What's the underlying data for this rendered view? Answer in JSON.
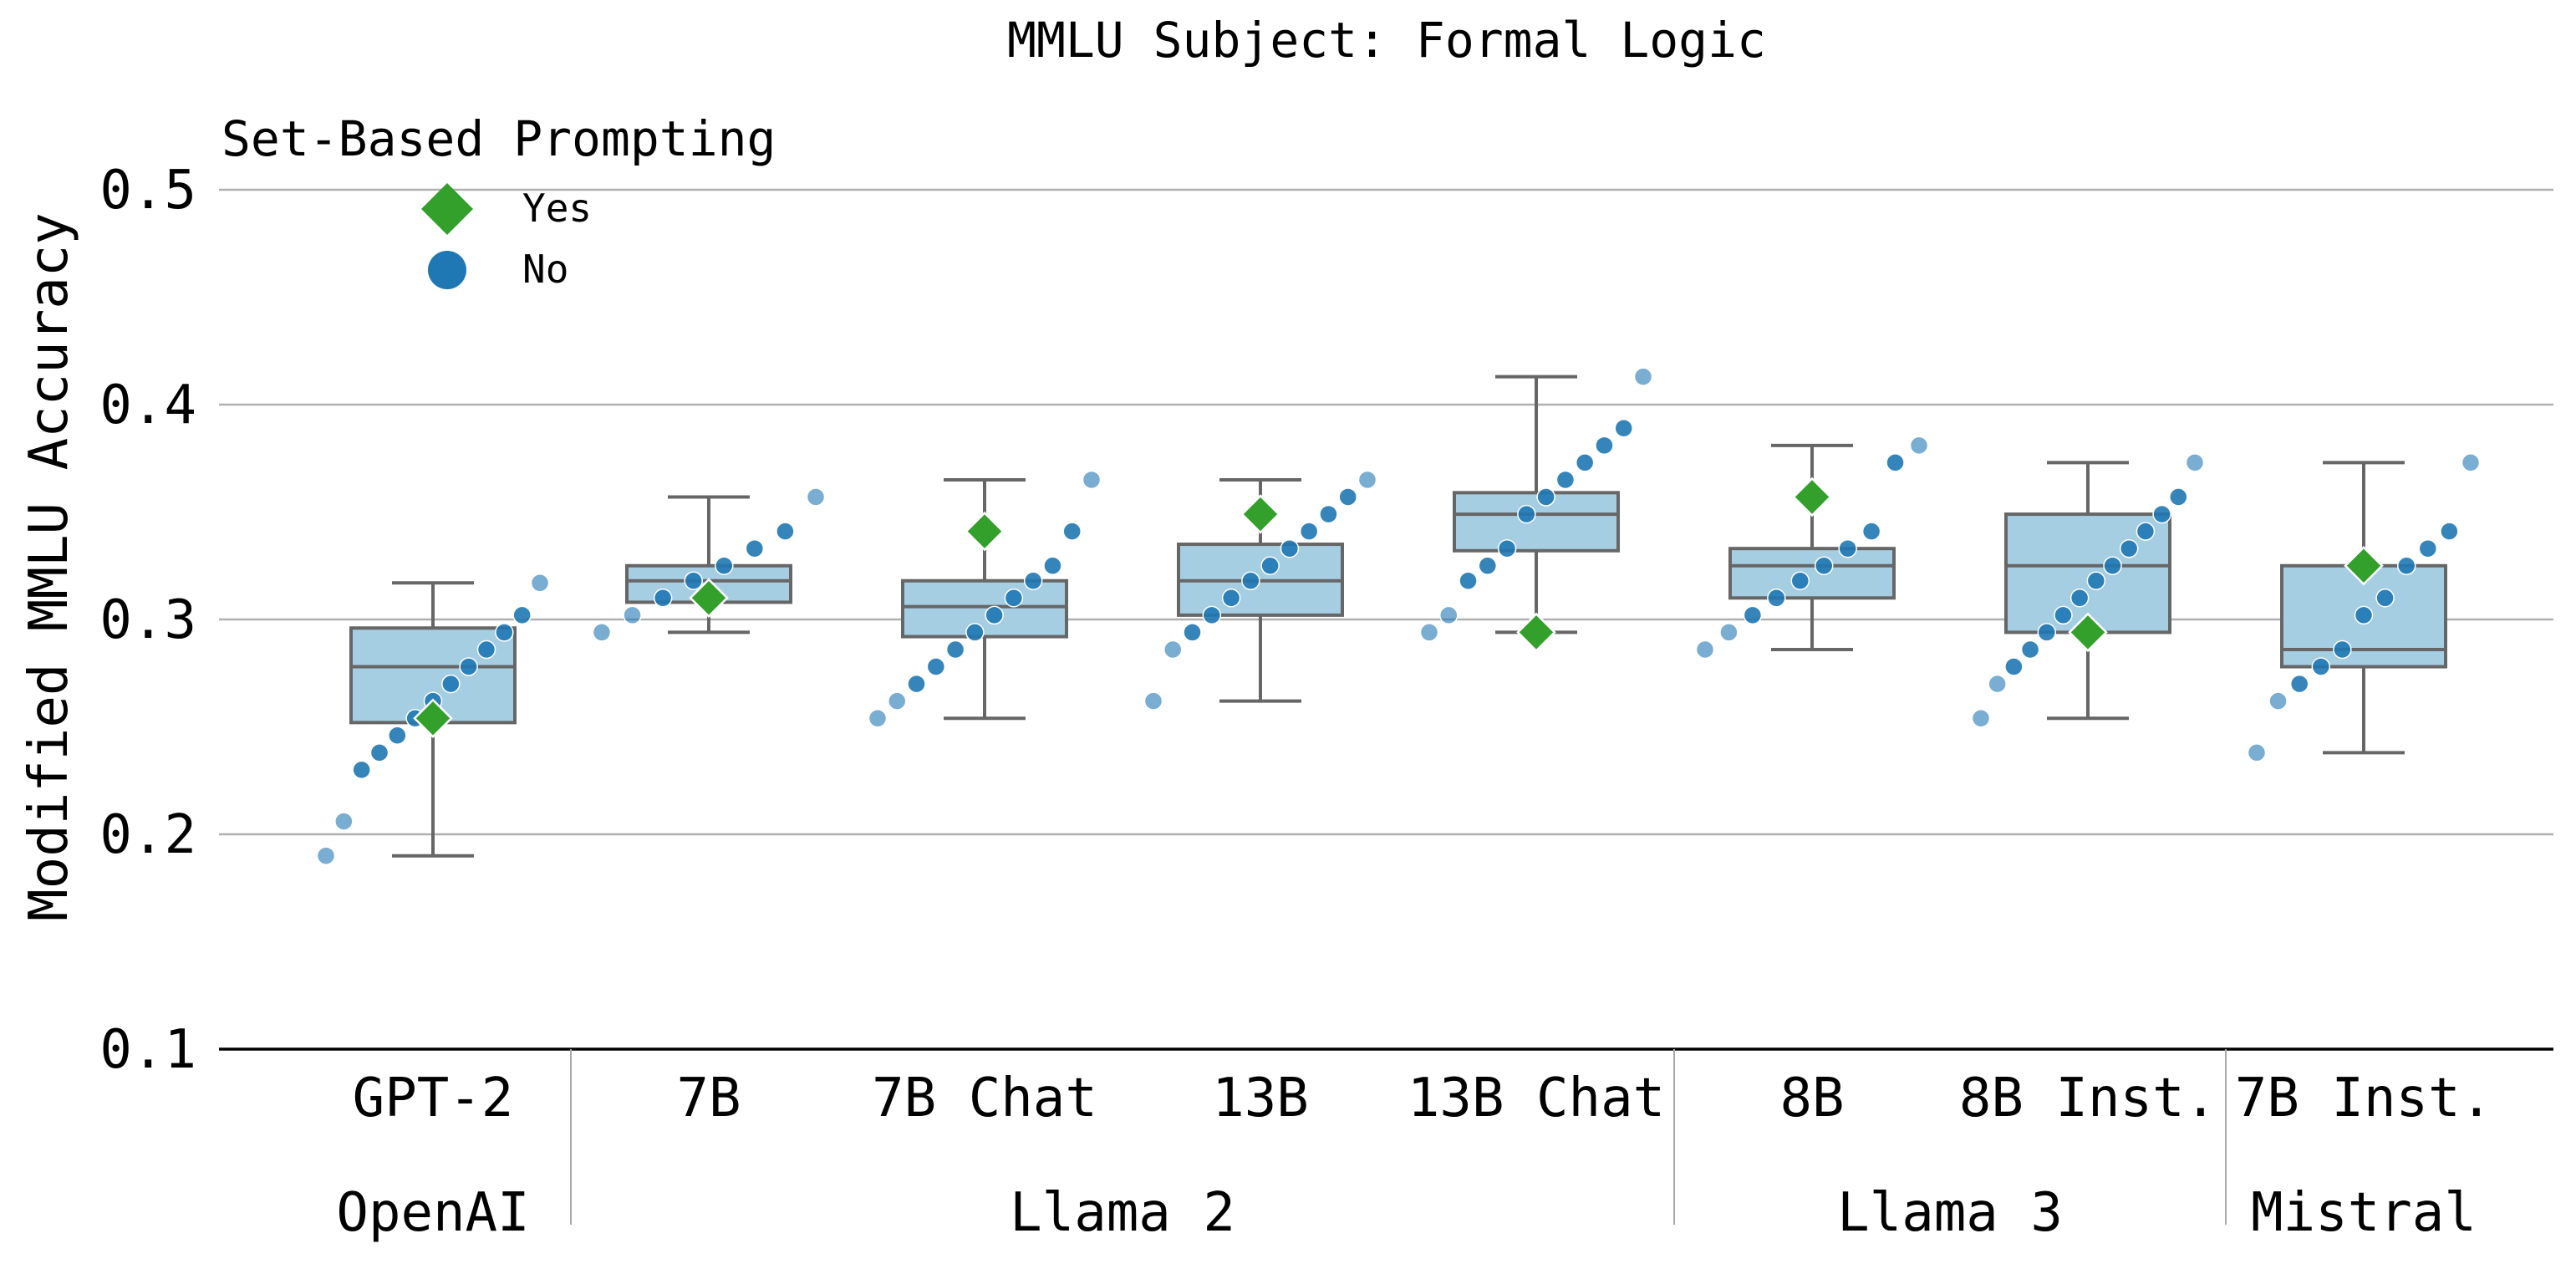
{
  "chart_data": {
    "type": "box",
    "title": "MMLU Subject: Formal Logic",
    "ylabel": "Modified MMLU Accuracy",
    "xlabel": "",
    "ylim": [
      0.1,
      0.52
    ],
    "yticks": [
      0.1,
      0.2,
      0.3,
      0.4,
      0.5
    ],
    "ytick_labels": [
      "0.1",
      "0.2",
      "0.3",
      "0.4",
      "0.5"
    ],
    "grid": "horizontal",
    "legend": {
      "title": "Set-Based Prompting",
      "placement": "top-left",
      "entries": [
        {
          "label": "Yes",
          "marker": "diamond",
          "color": "#33a02c"
        },
        {
          "label": "No",
          "marker": "circle",
          "color": "#1f78b4"
        }
      ]
    },
    "colors": {
      "box_fill": "#a6cee3",
      "box_edge": "#666666",
      "yes": "#33a02c",
      "no": "#1f78b4",
      "grid": "#b0b0b0"
    },
    "groups": [
      {
        "label": "OpenAI",
        "categories": [
          "GPT-2"
        ]
      },
      {
        "label": "Llama 2",
        "categories": [
          "7B",
          "7B Chat",
          "13B",
          "13B Chat"
        ]
      },
      {
        "label": "Llama 3",
        "categories": [
          "8B",
          "8B Inst."
        ]
      },
      {
        "label": "Mistral",
        "categories": [
          "7B Inst."
        ]
      }
    ],
    "categories": [
      "GPT-2",
      "7B",
      "7B Chat",
      "13B",
      "13B Chat",
      "8B",
      "8B Inst.",
      "7B Inst."
    ],
    "boxes": [
      {
        "category": "GPT-2",
        "whisker_low": 0.19,
        "q1": 0.252,
        "median": 0.278,
        "q3": 0.296,
        "whisker_high": 0.317
      },
      {
        "category": "7B",
        "whisker_low": 0.294,
        "q1": 0.308,
        "median": 0.318,
        "q3": 0.325,
        "whisker_high": 0.357
      },
      {
        "category": "7B Chat",
        "whisker_low": 0.254,
        "q1": 0.292,
        "median": 0.306,
        "q3": 0.318,
        "whisker_high": 0.365
      },
      {
        "category": "13B",
        "whisker_low": 0.262,
        "q1": 0.302,
        "median": 0.318,
        "q3": 0.335,
        "whisker_high": 0.365
      },
      {
        "category": "13B Chat",
        "whisker_low": 0.294,
        "q1": 0.332,
        "median": 0.349,
        "q3": 0.359,
        "whisker_high": 0.413
      },
      {
        "category": "8B",
        "whisker_low": 0.286,
        "q1": 0.31,
        "median": 0.325,
        "q3": 0.333,
        "whisker_high": 0.381
      },
      {
        "category": "8B Inst.",
        "whisker_low": 0.254,
        "q1": 0.294,
        "median": 0.325,
        "q3": 0.349,
        "whisker_high": 0.373
      },
      {
        "category": "7B Inst.",
        "whisker_low": 0.238,
        "q1": 0.278,
        "median": 0.286,
        "q3": 0.325,
        "whisker_high": 0.373
      }
    ],
    "series": [
      {
        "name": "Yes",
        "marker": "diamond",
        "values": [
          0.254,
          0.31,
          0.341,
          0.349,
          0.294,
          0.357,
          0.294,
          0.325
        ]
      },
      {
        "name": "No",
        "marker": "circle",
        "points": [
          [
            0.19,
            0.206,
            0.23,
            0.238,
            0.246,
            0.254,
            0.262,
            0.27,
            0.278,
            0.286,
            0.294,
            0.302,
            0.317
          ],
          [
            0.294,
            0.302,
            0.31,
            0.318,
            0.325,
            0.333,
            0.341,
            0.357
          ],
          [
            0.254,
            0.262,
            0.27,
            0.278,
            0.286,
            0.294,
            0.302,
            0.31,
            0.318,
            0.325,
            0.341,
            0.365
          ],
          [
            0.262,
            0.286,
            0.294,
            0.302,
            0.31,
            0.318,
            0.325,
            0.333,
            0.341,
            0.349,
            0.357,
            0.365
          ],
          [
            0.294,
            0.302,
            0.318,
            0.325,
            0.333,
            0.349,
            0.357,
            0.365,
            0.373,
            0.381,
            0.389,
            0.413
          ],
          [
            0.286,
            0.294,
            0.302,
            0.31,
            0.318,
            0.325,
            0.333,
            0.341,
            0.373,
            0.381
          ],
          [
            0.254,
            0.27,
            0.278,
            0.286,
            0.294,
            0.302,
            0.31,
            0.318,
            0.325,
            0.333,
            0.341,
            0.349,
            0.357,
            0.373
          ],
          [
            0.238,
            0.262,
            0.27,
            0.278,
            0.286,
            0.302,
            0.31,
            0.325,
            0.333,
            0.341,
            0.373
          ]
        ]
      }
    ]
  }
}
